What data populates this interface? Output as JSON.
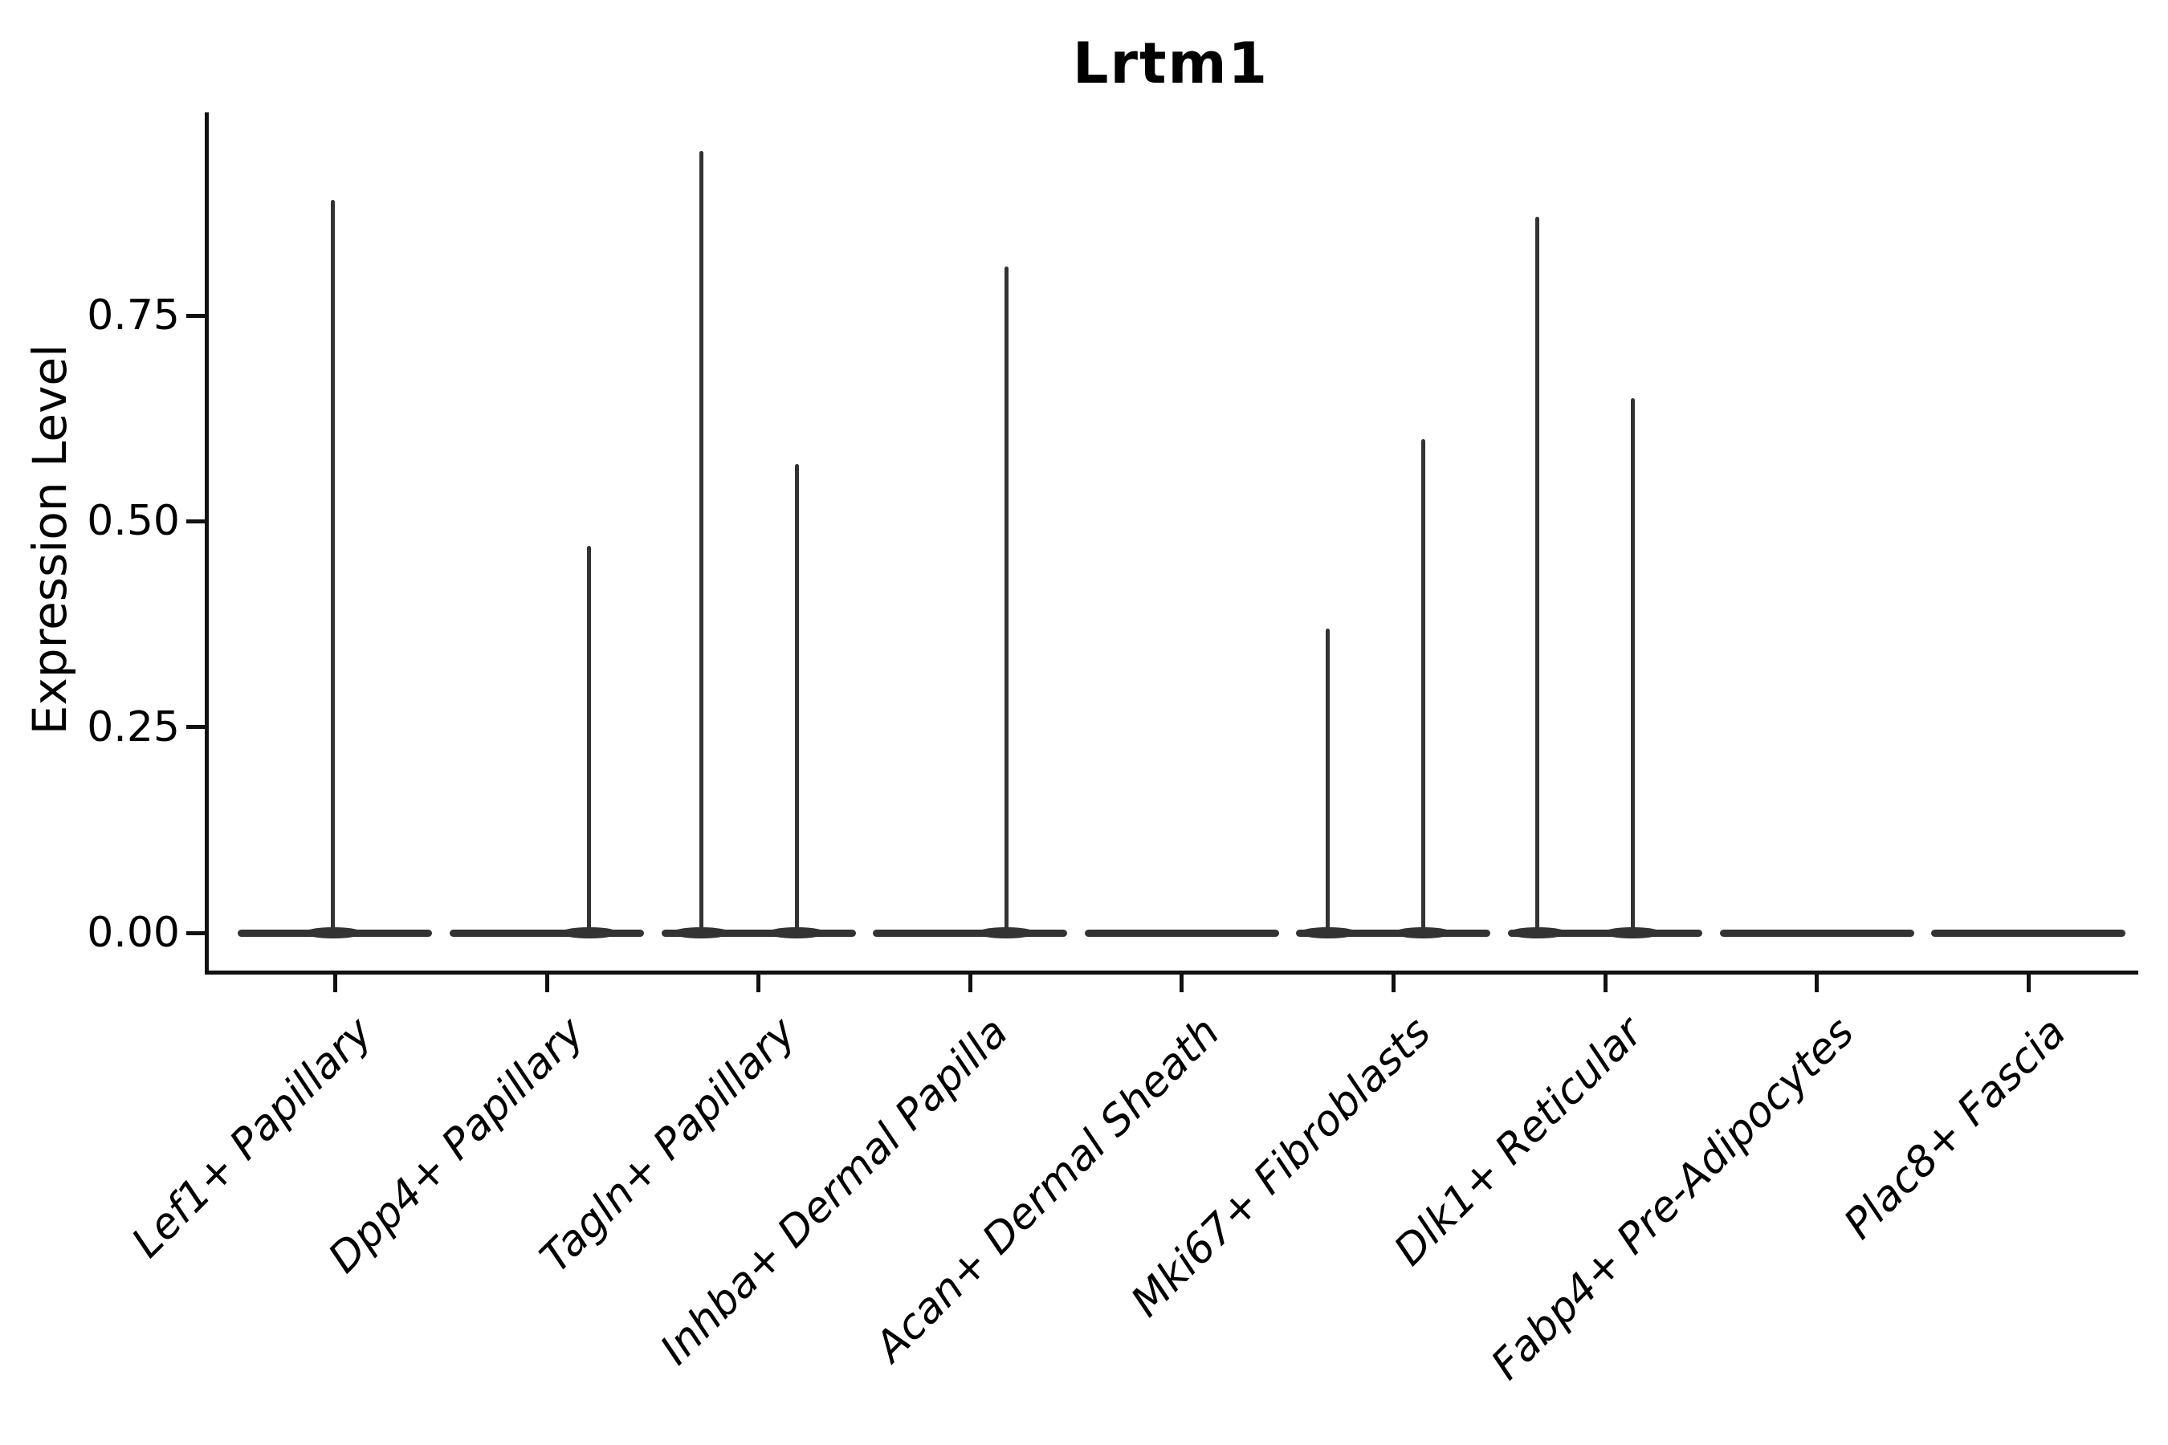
{
  "title": "Lrtm1",
  "chart_data": {
    "type": "violin",
    "title": "Lrtm1",
    "xlabel": "",
    "ylabel": "Expression Level",
    "grid": false,
    "legend": "none",
    "ylim": [
      -0.05,
      1.0
    ],
    "y_ticks": [
      {
        "value": 0.0,
        "label": "0.00"
      },
      {
        "value": 0.25,
        "label": "0.25"
      },
      {
        "value": 0.5,
        "label": "0.50"
      },
      {
        "value": 0.75,
        "label": "0.75"
      }
    ],
    "categories": [
      "Lef1+ Papillary",
      "Dpp4+ Papillary",
      "Tagln+ Papillary",
      "Inhba+ Dermal Papilla",
      "Acan+ Dermal Sheath",
      "Mki67+ Fibroblasts",
      "Dlk1+ Reticular",
      "Fabp4+ Pre-Adipocytes",
      "Plac8+ Fascia"
    ],
    "series": [
      {
        "category": "Lef1+ Papillary",
        "baseline_value": 0,
        "spikes": [
          {
            "value": 0.89,
            "offset_frac": -0.01
          }
        ]
      },
      {
        "category": "Dpp4+ Papillary",
        "baseline_value": 0,
        "spikes": [
          {
            "value": 0.47,
            "offset_frac": 0.2
          }
        ]
      },
      {
        "category": "Tagln+ Papillary",
        "baseline_value": 0,
        "spikes": [
          {
            "value": 0.95,
            "offset_frac": -0.27
          },
          {
            "value": 0.57,
            "offset_frac": 0.18
          }
        ]
      },
      {
        "category": "Inhba+ Dermal Papilla",
        "baseline_value": 0,
        "spikes": [
          {
            "value": 0.81,
            "offset_frac": 0.17
          }
        ]
      },
      {
        "category": "Acan+ Dermal Sheath",
        "baseline_value": 0,
        "spikes": []
      },
      {
        "category": "Mki67+ Fibroblasts",
        "baseline_value": 0,
        "spikes": [
          {
            "value": 0.37,
            "offset_frac": -0.31
          },
          {
            "value": 0.6,
            "offset_frac": 0.14
          }
        ]
      },
      {
        "category": "Dlk1+ Reticular",
        "baseline_value": 0,
        "spikes": [
          {
            "value": 0.87,
            "offset_frac": -0.32
          },
          {
            "value": 0.65,
            "offset_frac": 0.13
          }
        ]
      },
      {
        "category": "Fabp4+ Pre-Adipocytes",
        "baseline_value": 0,
        "spikes": []
      },
      {
        "category": "Plac8+ Fascia",
        "baseline_value": 0,
        "spikes": []
      }
    ],
    "colors": {
      "violin": "#333333",
      "axis": "#111111",
      "text": "#000000",
      "background": "#ffffff"
    }
  }
}
